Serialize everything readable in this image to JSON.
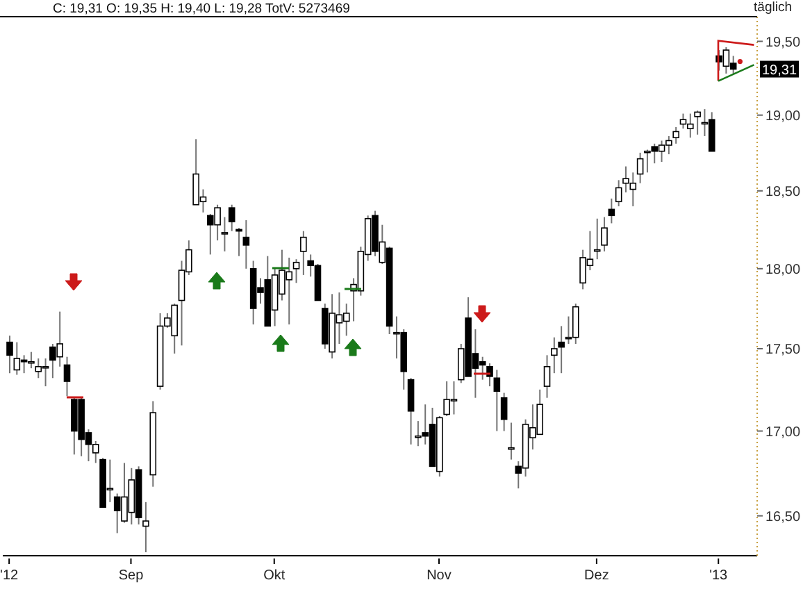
{
  "chart_data": {
    "type": "candlestick",
    "title": "C: 19,31 O: 19,35 H: 19,40 L: 19,28 TotV: 5273469",
    "annotations": [
      "täglich",
      "19,31"
    ],
    "categories": [
      "'12",
      null,
      null,
      null,
      null,
      null,
      null,
      null,
      null,
      null,
      null,
      null,
      null,
      null,
      null,
      null,
      null,
      "Sep",
      null,
      null,
      null,
      null,
      null,
      null,
      null,
      null,
      null,
      null,
      null,
      null,
      null,
      null,
      null,
      null,
      null,
      null,
      null,
      "Okt",
      null,
      null,
      null,
      null,
      null,
      null,
      null,
      null,
      null,
      null,
      null,
      null,
      null,
      null,
      null,
      null,
      null,
      null,
      null,
      null,
      null,
      null,
      "Nov",
      null,
      null,
      null,
      null,
      null,
      null,
      null,
      null,
      null,
      null,
      null,
      null,
      null,
      null,
      null,
      null,
      null,
      null,
      null,
      null,
      null,
      "Dez",
      null,
      null,
      null,
      null,
      null,
      null,
      null,
      null,
      null,
      null,
      null,
      null,
      null,
      null,
      null,
      null,
      "'13",
      null,
      null
    ],
    "ohlc": [
      [
        17.54,
        17.58,
        17.35,
        17.46
      ],
      [
        17.37,
        17.54,
        17.34,
        17.44
      ],
      [
        17.43,
        17.46,
        17.35,
        17.42
      ],
      [
        17.42,
        17.48,
        17.38,
        17.42
      ],
      [
        17.36,
        17.44,
        17.32,
        17.39
      ],
      [
        17.39,
        17.44,
        17.27,
        17.39
      ],
      [
        17.51,
        17.53,
        17.32,
        17.43
      ],
      [
        17.45,
        17.73,
        17.39,
        17.53
      ],
      [
        17.4,
        17.45,
        17.21,
        17.3
      ],
      [
        17.19,
        17.2,
        16.86,
        17.0
      ],
      [
        17.19,
        17.2,
        16.85,
        16.95
      ],
      [
        16.99,
        17.01,
        16.82,
        16.92
      ],
      [
        16.87,
        16.94,
        16.81,
        16.92
      ],
      [
        16.83,
        16.84,
        16.55,
        16.55
      ],
      [
        16.66,
        16.83,
        16.58,
        16.66
      ],
      [
        16.61,
        16.63,
        16.4,
        16.53
      ],
      [
        16.47,
        16.81,
        16.46,
        16.61
      ],
      [
        16.52,
        16.78,
        16.45,
        16.71
      ],
      [
        16.77,
        16.79,
        16.45,
        16.49
      ],
      [
        16.44,
        16.58,
        16.29,
        16.47
      ],
      [
        16.74,
        17.18,
        16.67,
        17.11
      ],
      [
        17.27,
        17.72,
        17.25,
        17.64
      ],
      [
        17.64,
        17.72,
        17.63,
        17.69
      ],
      [
        17.58,
        17.78,
        17.47,
        17.77
      ],
      [
        17.8,
        18.05,
        17.52,
        17.99
      ],
      [
        17.98,
        18.18,
        17.96,
        18.12
      ],
      [
        18.41,
        18.84,
        18.41,
        18.61
      ],
      [
        18.43,
        18.51,
        18.36,
        18.46
      ],
      [
        18.34,
        18.35,
        18.09,
        18.28
      ],
      [
        18.28,
        18.41,
        18.18,
        18.39
      ],
      [
        18.23,
        18.33,
        18.11,
        18.23
      ],
      [
        18.39,
        18.41,
        18.24,
        18.3
      ],
      [
        18.25,
        18.26,
        18.08,
        18.24
      ],
      [
        18.2,
        18.31,
        18.0,
        18.15
      ],
      [
        18.0,
        18.05,
        17.65,
        17.75
      ],
      [
        17.88,
        17.94,
        17.78,
        17.85
      ],
      [
        17.93,
        18.08,
        17.64,
        17.64
      ],
      [
        17.74,
        18.0,
        17.64,
        17.96
      ],
      [
        17.84,
        18.12,
        17.8,
        17.99
      ],
      [
        17.93,
        18.07,
        17.65,
        17.98
      ],
      [
        18.0,
        18.06,
        17.91,
        18.04
      ],
      [
        18.11,
        18.24,
        17.96,
        18.2
      ],
      [
        18.05,
        18.09,
        17.95,
        18.02
      ],
      [
        18.02,
        18.03,
        17.8,
        17.8
      ],
      [
        17.75,
        17.78,
        17.5,
        17.53
      ],
      [
        17.48,
        17.84,
        17.44,
        17.72
      ],
      [
        17.66,
        17.85,
        17.53,
        17.71
      ],
      [
        17.67,
        17.78,
        17.58,
        17.72
      ],
      [
        17.86,
        17.94,
        17.67,
        17.9
      ],
      [
        17.86,
        18.14,
        17.83,
        18.11
      ],
      [
        18.09,
        18.34,
        18.05,
        18.32
      ],
      [
        18.34,
        18.37,
        18.08,
        18.11
      ],
      [
        18.04,
        18.28,
        18.03,
        18.17
      ],
      [
        18.13,
        18.14,
        17.59,
        17.64
      ],
      [
        17.6,
        17.7,
        17.44,
        17.6
      ],
      [
        17.6,
        17.62,
        17.25,
        17.36
      ],
      [
        17.31,
        17.32,
        16.92,
        17.12
      ],
      [
        16.97,
        17.06,
        16.91,
        16.97
      ],
      [
        16.99,
        17.16,
        16.92,
        16.97
      ],
      [
        17.04,
        17.14,
        16.79,
        16.79
      ],
      [
        16.76,
        17.09,
        16.73,
        17.08
      ],
      [
        17.1,
        17.3,
        17.09,
        17.19
      ],
      [
        17.19,
        17.3,
        17.1,
        17.19
      ],
      [
        17.31,
        17.53,
        17.29,
        17.5
      ],
      [
        17.69,
        17.82,
        17.33,
        17.33
      ],
      [
        17.47,
        17.62,
        17.2,
        17.38
      ],
      [
        17.42,
        17.45,
        17.31,
        17.4
      ],
      [
        17.39,
        17.41,
        17.27,
        17.33
      ],
      [
        17.32,
        17.37,
        17.0,
        17.24
      ],
      [
        17.2,
        17.23,
        17.0,
        17.07
      ],
      [
        16.9,
        17.05,
        16.83,
        16.9
      ],
      [
        16.79,
        16.82,
        16.66,
        16.75
      ],
      [
        16.78,
        17.07,
        16.73,
        17.04
      ],
      [
        16.96,
        17.16,
        16.89,
        17.02
      ],
      [
        16.98,
        17.25,
        16.98,
        17.16
      ],
      [
        17.27,
        17.46,
        17.2,
        17.39
      ],
      [
        17.46,
        17.57,
        17.35,
        17.5
      ],
      [
        17.54,
        17.64,
        17.35,
        17.51
      ],
      [
        17.57,
        17.7,
        17.53,
        17.57
      ],
      [
        17.57,
        17.78,
        17.53,
        17.76
      ],
      [
        17.91,
        18.12,
        17.87,
        18.07
      ],
      [
        18.02,
        18.24,
        17.99,
        18.06
      ],
      [
        18.12,
        18.32,
        18.06,
        18.12
      ],
      [
        18.15,
        18.33,
        18.11,
        18.26
      ],
      [
        18.38,
        18.45,
        18.29,
        18.34
      ],
      [
        18.43,
        18.57,
        18.4,
        18.52
      ],
      [
        18.55,
        18.66,
        18.49,
        18.58
      ],
      [
        18.51,
        18.62,
        18.4,
        18.55
      ],
      [
        18.61,
        18.75,
        18.55,
        18.71
      ],
      [
        18.76,
        18.77,
        18.62,
        18.76
      ],
      [
        18.79,
        18.81,
        18.68,
        18.76
      ],
      [
        18.76,
        18.83,
        18.69,
        18.8
      ],
      [
        18.8,
        18.86,
        18.74,
        18.83
      ],
      [
        18.85,
        18.92,
        18.81,
        18.89
      ],
      [
        18.94,
        19.01,
        18.91,
        18.97
      ],
      [
        18.91,
        19.01,
        18.85,
        18.94
      ],
      [
        18.99,
        19.03,
        18.87,
        19.02
      ],
      [
        18.95,
        19.04,
        18.86,
        18.95
      ],
      [
        18.97,
        19.02,
        18.76,
        18.76
      ],
      [
        19.4,
        19.44,
        19.3,
        19.36
      ],
      [
        19.33,
        19.46,
        19.28,
        19.44
      ],
      [
        19.35,
        19.4,
        19.28,
        19.31
      ]
    ],
    "color": "#000000",
    "log": true,
    "ylim": [
      16.27,
      19.67
    ],
    "yticks": [
      {
        "value": 16.5,
        "label": "16,50"
      },
      {
        "value": 17,
        "label": "17,00"
      },
      {
        "value": 17.5,
        "label": "17,50"
      },
      {
        "value": 18,
        "label": "18,00"
      },
      {
        "value": 18.5,
        "label": "18,50"
      },
      {
        "value": 19,
        "label": "19,00"
      },
      {
        "value": 19.5,
        "label": "19,50"
      }
    ]
  }
}
